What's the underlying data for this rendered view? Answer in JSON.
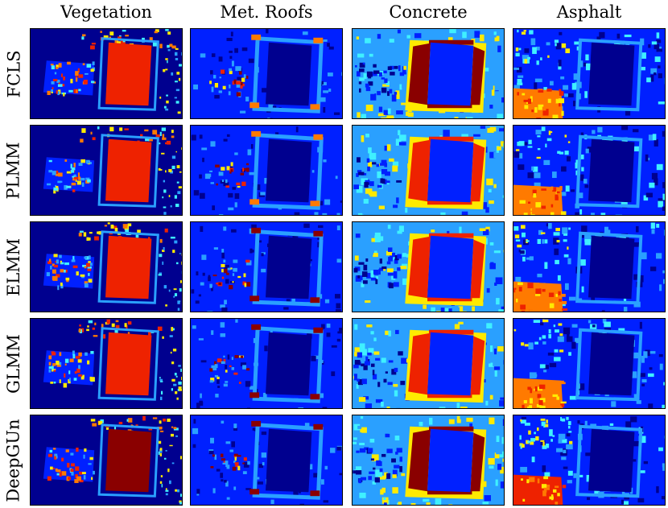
{
  "columns": [
    "Vegetation",
    "Met. Roofs",
    "Concrete",
    "Asphalt"
  ],
  "rows": [
    "FCLS",
    "PLMM",
    "ELMM",
    "GLMM",
    "DeepGUn"
  ],
  "colormap": "jet",
  "colors": {
    "dark_blue": "#00008f",
    "blue": "#0020ff",
    "light_blue": "#2aa0ff",
    "cyan": "#3ff0ff",
    "yellow": "#ffea00",
    "orange": "#ff7a00",
    "red": "#ee2200",
    "dark_red": "#8a0000"
  }
}
